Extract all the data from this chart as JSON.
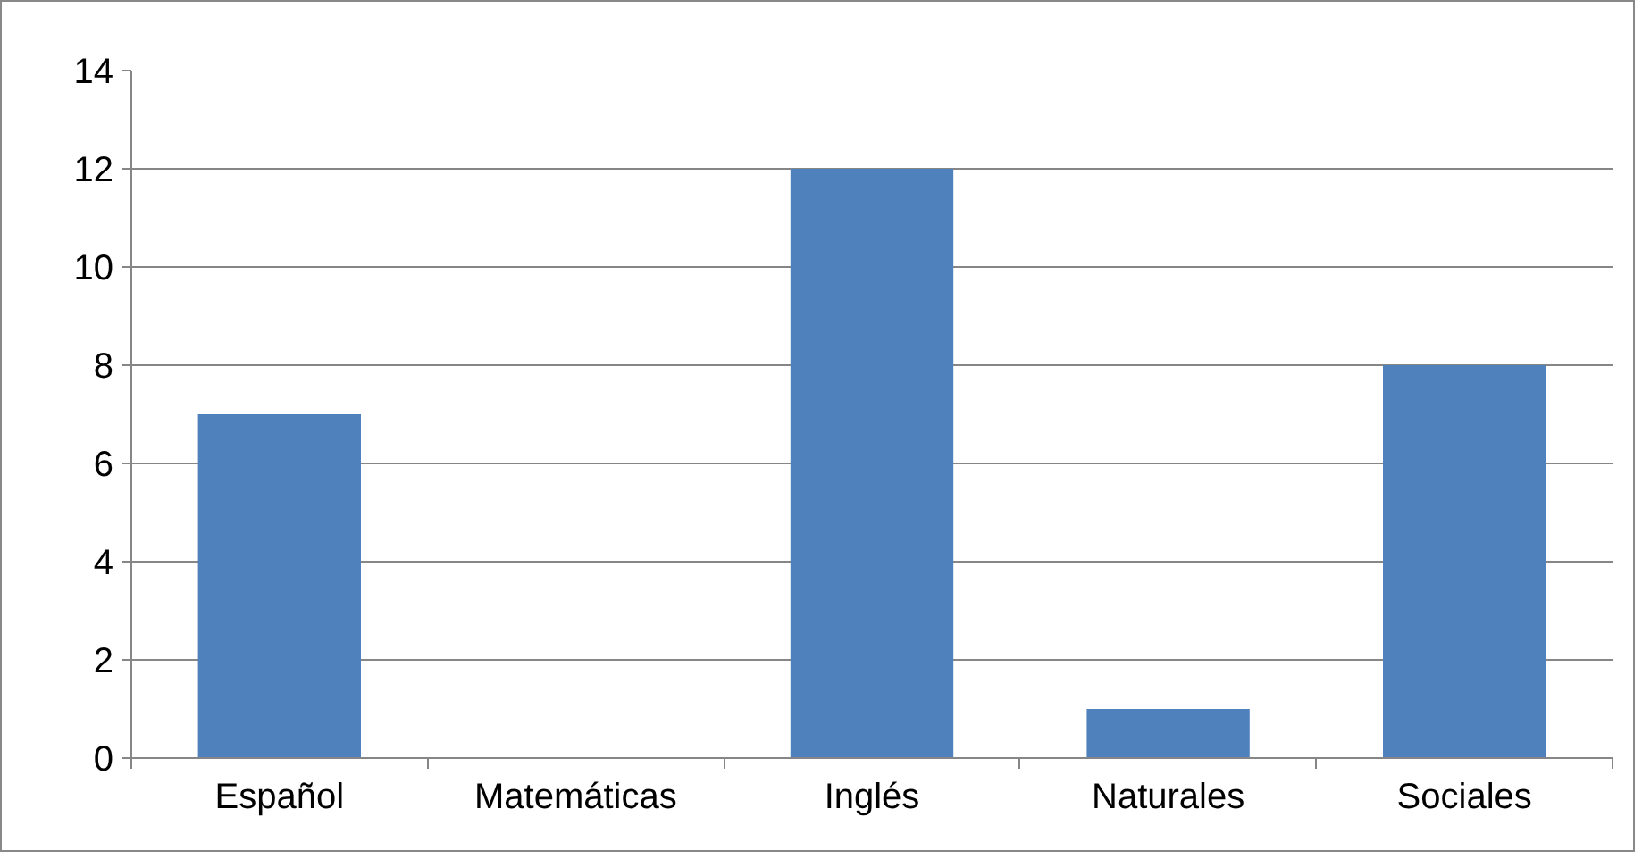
{
  "chart_data": {
    "type": "bar",
    "categories": [
      "Español",
      "Matemáticas",
      "Inglés",
      "Naturales",
      "Sociales"
    ],
    "values": [
      7,
      0,
      12,
      1,
      8
    ],
    "color": "#4f81bd",
    "ylim": [
      0,
      14
    ],
    "yticks": [
      0,
      2,
      4,
      6,
      8,
      10,
      12,
      14
    ],
    "grid": "y"
  }
}
